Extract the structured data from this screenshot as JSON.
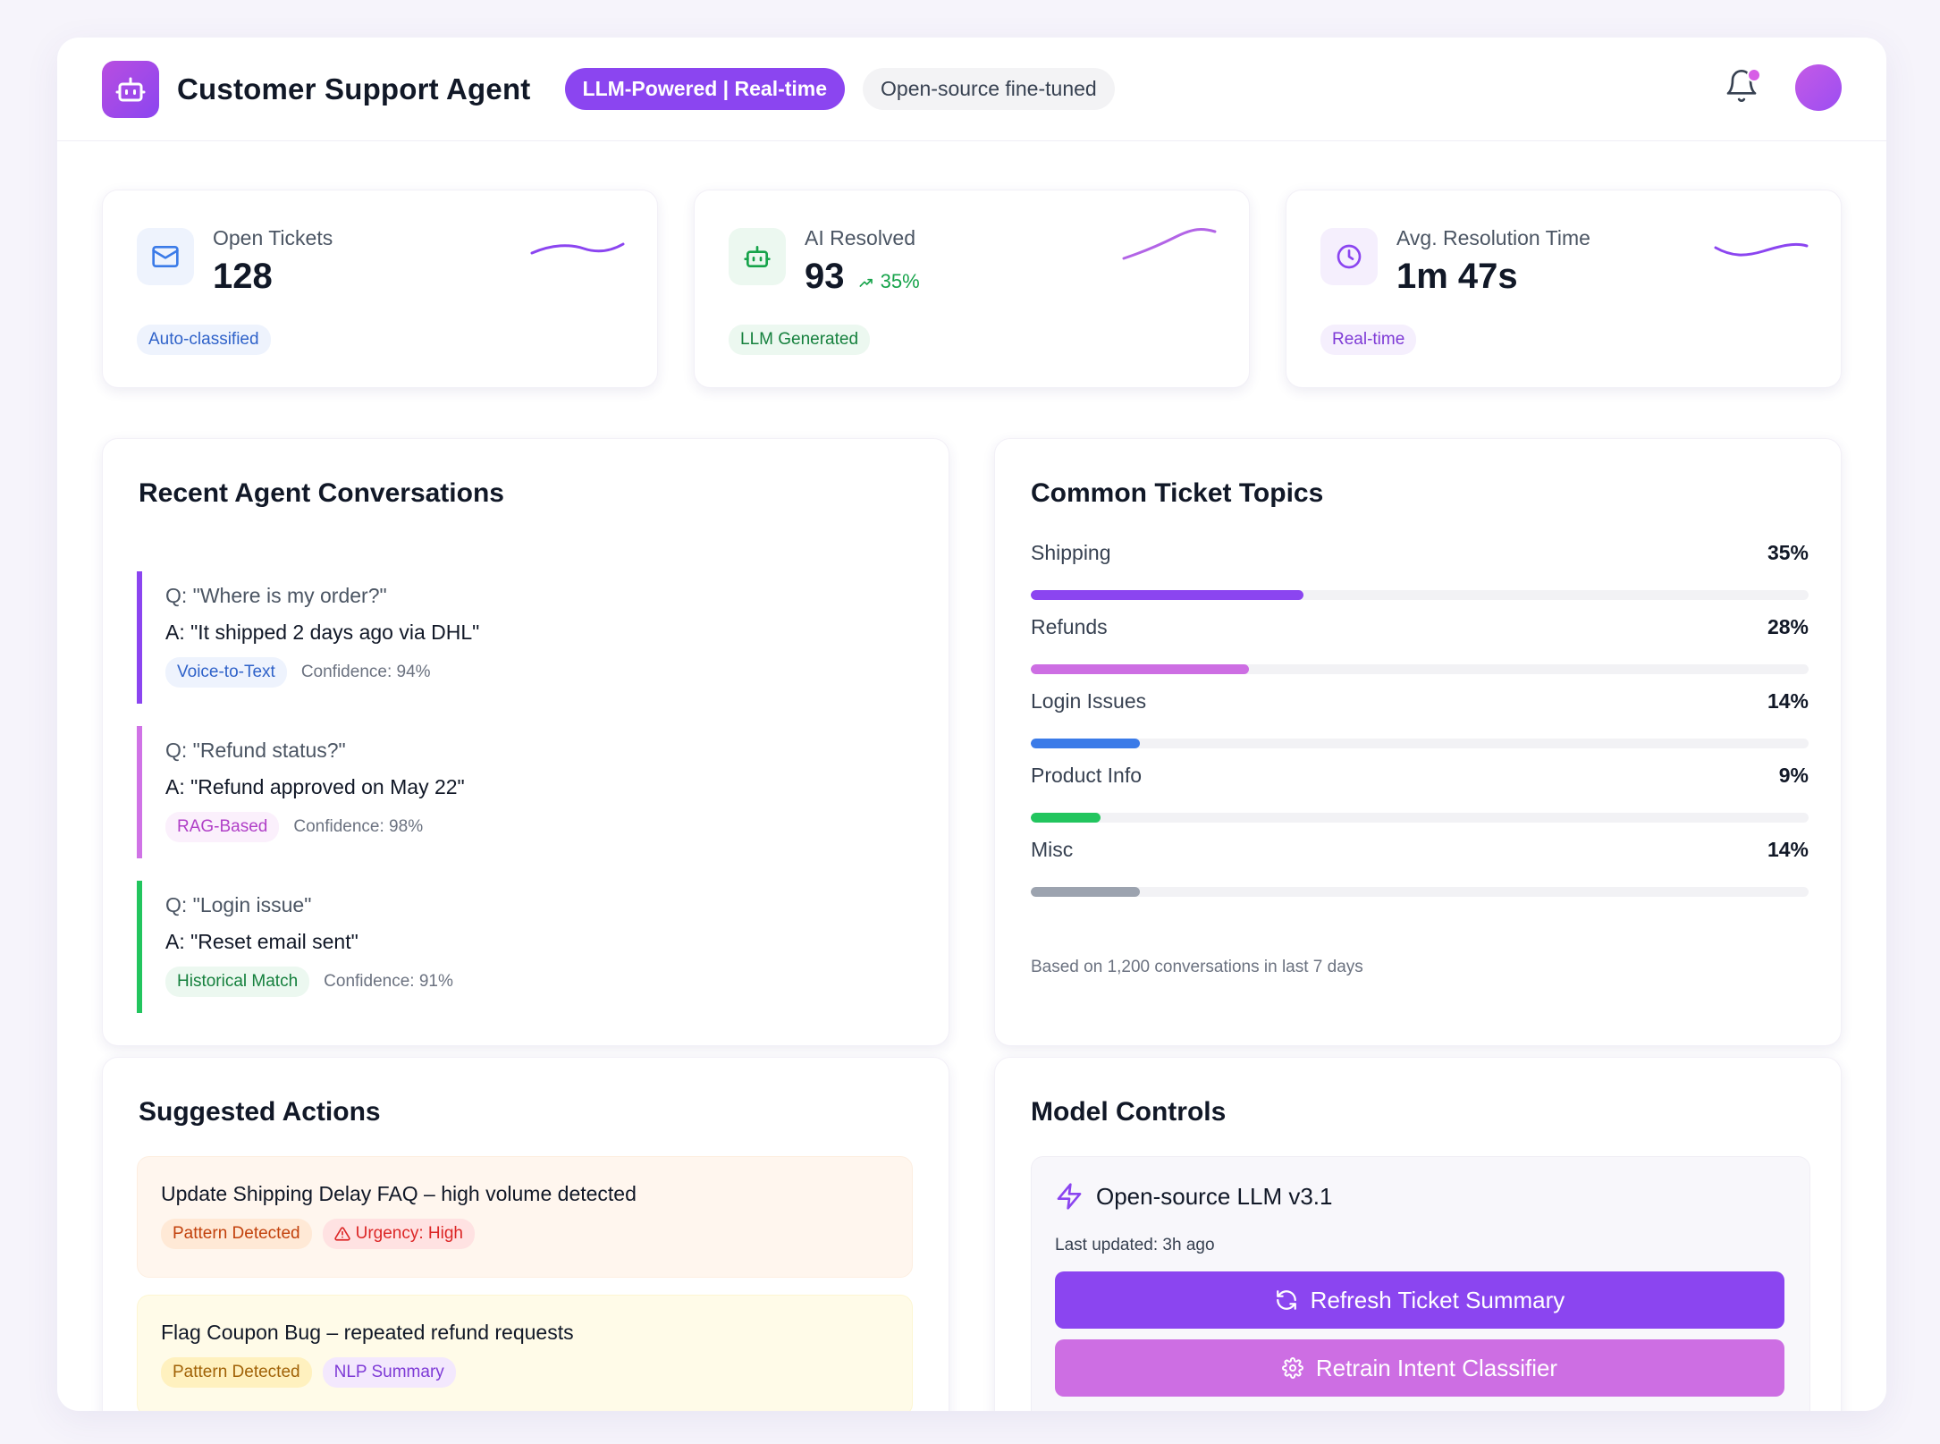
{
  "header": {
    "title": "Customer Support Agent",
    "badge_primary": "LLM-Powered | Real-time",
    "badge_secondary": "Open-source fine-tuned"
  },
  "stats": [
    {
      "label": "Open Tickets",
      "value": "128",
      "trend": "",
      "tag": "Auto-classified",
      "icon": "mail-icon"
    },
    {
      "label": "AI Resolved",
      "value": "93",
      "trend": "35%",
      "tag": "LLM Generated",
      "icon": "robot-icon"
    },
    {
      "label": "Avg. Resolution Time",
      "value": "1m 47s",
      "trend": "",
      "tag": "Real-time",
      "icon": "clock-icon"
    }
  ],
  "conversations": {
    "title": "Recent Agent Conversations",
    "items": [
      {
        "q": "Q: \"Where is my order?\"",
        "a": "A: \"It shipped 2 days ago via DHL\"",
        "tag": "Voice-to-Text",
        "confidence": "Confidence: 94%",
        "color": "#8b45f0"
      },
      {
        "q": "Q: \"Refund status?\"",
        "a": "A: \"Refund approved on May 22\"",
        "tag": "RAG-Based",
        "confidence": "Confidence: 98%",
        "color": "#d073e6"
      },
      {
        "q": "Q: \"Login issue\"",
        "a": "A: \"Reset email sent\"",
        "tag": "Historical Match",
        "confidence": "Confidence: 91%",
        "color": "#22c55e"
      }
    ]
  },
  "topics": {
    "title": "Common Ticket Topics",
    "items": [
      {
        "name": "Shipping",
        "pct": "35%",
        "value": 35,
        "color": "#8b45f0"
      },
      {
        "name": "Refunds",
        "pct": "28%",
        "value": 28,
        "color": "#cd6ee3"
      },
      {
        "name": "Login Issues",
        "pct": "14%",
        "value": 14,
        "color": "#3b7be8"
      },
      {
        "name": "Product Info",
        "pct": "9%",
        "value": 9,
        "color": "#22c55e"
      },
      {
        "name": "Misc",
        "pct": "14%",
        "value": 14,
        "color": "#9ca3af"
      }
    ],
    "note": "Based on 1,200 conversations in last 7 days"
  },
  "actions": {
    "title": "Suggested Actions",
    "items": [
      {
        "title": "Update Shipping Delay FAQ – high volume detected",
        "tags": [
          "Pattern Detected",
          "Urgency: High"
        ]
      },
      {
        "title": "Flag Coupon Bug – repeated refund requests",
        "tags": [
          "Pattern Detected",
          "NLP Summary"
        ]
      }
    ]
  },
  "model": {
    "title": "Model Controls",
    "name": "Open-source LLM v3.1",
    "updated": "Last updated: 3h ago",
    "refresh_label": "Refresh Ticket Summary",
    "retrain_label": "Retrain Intent Classifier"
  }
}
